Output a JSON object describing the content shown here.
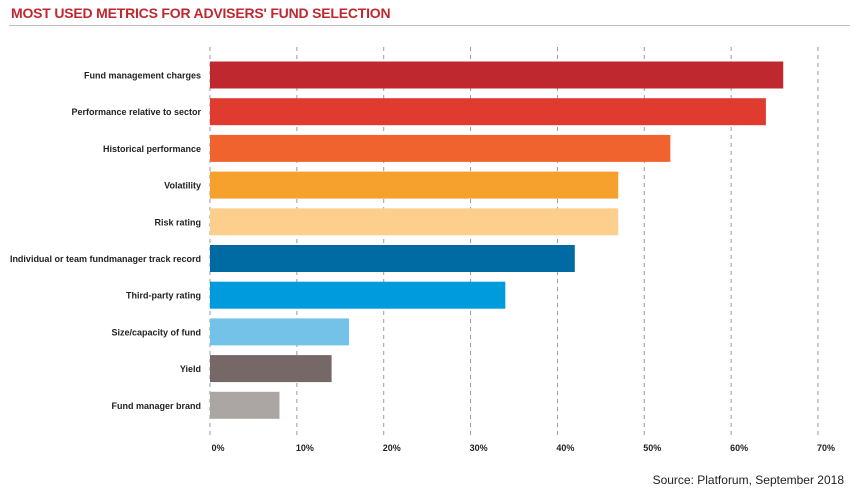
{
  "title": "MOST USED METRICS FOR ADVISERS' FUND SELECTION",
  "source": "Source: Platforum, September 2018",
  "chart_data": {
    "type": "bar",
    "orientation": "horizontal",
    "categories": [
      "Fund management charges",
      "Performance relative to sector",
      "Historical performance",
      "Volatility",
      "Risk rating",
      "Individual or team fundmanager track record",
      "Third-party rating",
      "Size/capacity of fund",
      "Yield",
      "Fund manager brand"
    ],
    "values": [
      66,
      64,
      53,
      47,
      47,
      42,
      34,
      16,
      14,
      8
    ],
    "colors": [
      "#c0282f",
      "#e03b2f",
      "#f0632e",
      "#f6a02e",
      "#fcd08c",
      "#006aa3",
      "#009bdc",
      "#74c2e8",
      "#766866",
      "#aba6a3"
    ],
    "xlim": [
      0,
      70
    ],
    "xticks": [
      0,
      10,
      20,
      30,
      40,
      50,
      60,
      70
    ],
    "xtick_labels": [
      "0%",
      "10%",
      "20%",
      "30%",
      "40%",
      "50%",
      "60%",
      "70%"
    ],
    "grid": "vertical dashed",
    "legend": "none"
  }
}
